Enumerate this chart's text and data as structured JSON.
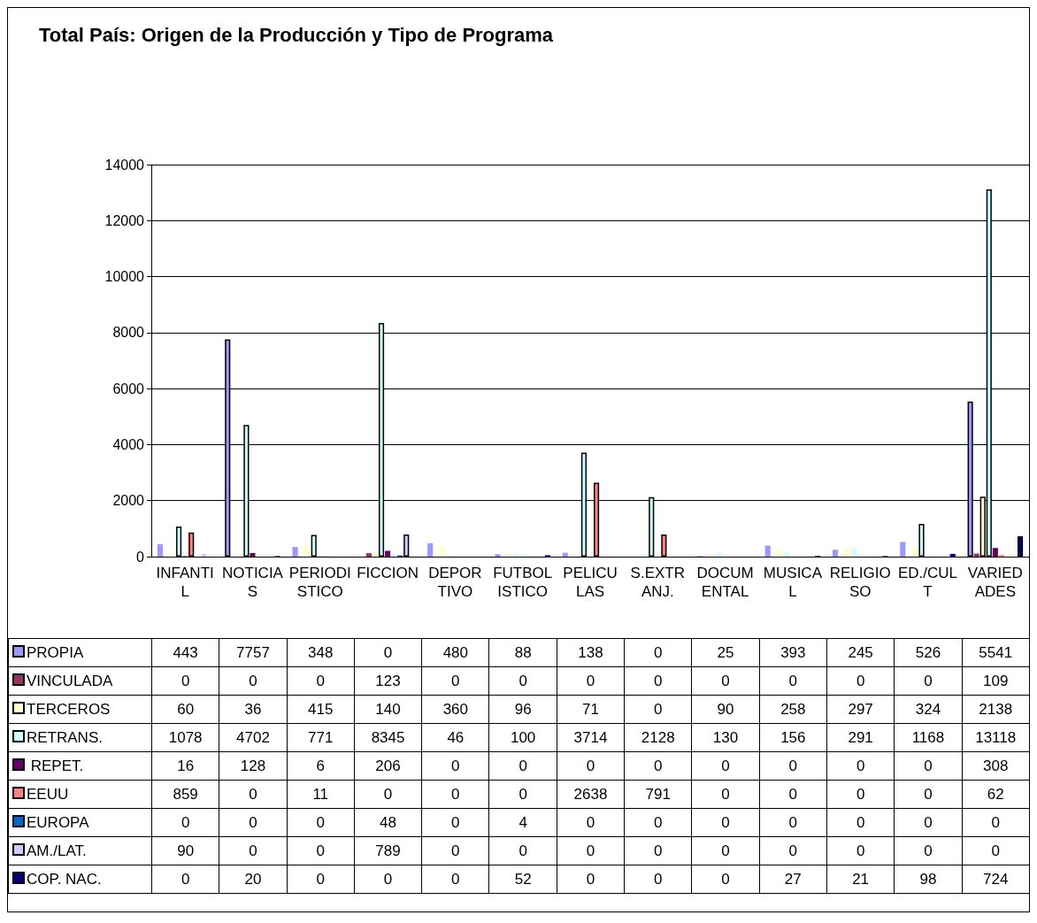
{
  "chart_data": {
    "type": "bar",
    "title": "Total País: Origen de la Producción y Tipo de Programa",
    "categories": [
      "INFANTIL",
      "NOTICIAS",
      "PERIODISTICO",
      "FICCION",
      "DEPORTIVO",
      "FUTBOLISTICO",
      "PELICULAS",
      "S.EXTRANJ.",
      "DOCUMENTAL",
      "MUSICAL",
      "RELIGIOSO",
      "ED./CULT",
      "VARIEDADES"
    ],
    "series": [
      {
        "name": "PROPIA",
        "color": "#9999ff",
        "values": [
          443,
          7757,
          348,
          0,
          480,
          88,
          138,
          0,
          25,
          393,
          245,
          526,
          5541
        ]
      },
      {
        "name": "VINCULADA",
        "color": "#993366",
        "values": [
          0,
          0,
          0,
          123,
          0,
          0,
          0,
          0,
          0,
          0,
          0,
          0,
          109
        ]
      },
      {
        "name": "TERCEROS",
        "color": "#ffffcc",
        "values": [
          60,
          36,
          415,
          140,
          360,
          96,
          71,
          0,
          90,
          258,
          297,
          324,
          2138
        ]
      },
      {
        "name": "RETRANS.",
        "color": "#ccffff",
        "values": [
          1078,
          4702,
          771,
          8345,
          46,
          100,
          3714,
          2128,
          130,
          156,
          291,
          1168,
          13118
        ]
      },
      {
        "name": " REPET.",
        "color": "#660066",
        "values": [
          16,
          128,
          6,
          206,
          0,
          0,
          0,
          0,
          0,
          0,
          0,
          0,
          308
        ]
      },
      {
        "name": "EEUU",
        "color": "#ff8080",
        "values": [
          859,
          0,
          11,
          0,
          0,
          0,
          2638,
          791,
          0,
          0,
          0,
          0,
          62
        ]
      },
      {
        "name": "EUROPA",
        "color": "#0066cc",
        "values": [
          0,
          0,
          0,
          48,
          0,
          4,
          0,
          0,
          0,
          0,
          0,
          0,
          0
        ]
      },
      {
        "name": "AM./LAT.",
        "color": "#ccccff",
        "values": [
          90,
          0,
          0,
          789,
          0,
          0,
          0,
          0,
          0,
          0,
          0,
          0,
          0
        ]
      },
      {
        "name": "COP. NAC.",
        "color": "#000080",
        "values": [
          0,
          20,
          0,
          0,
          0,
          52,
          0,
          0,
          0,
          27,
          21,
          98,
          724
        ]
      }
    ],
    "ylim": [
      0,
      14000
    ],
    "yticks": [
      0,
      2000,
      4000,
      6000,
      8000,
      10000,
      12000,
      14000
    ],
    "grid": "y",
    "legend": "bottom",
    "data_labels": true
  }
}
